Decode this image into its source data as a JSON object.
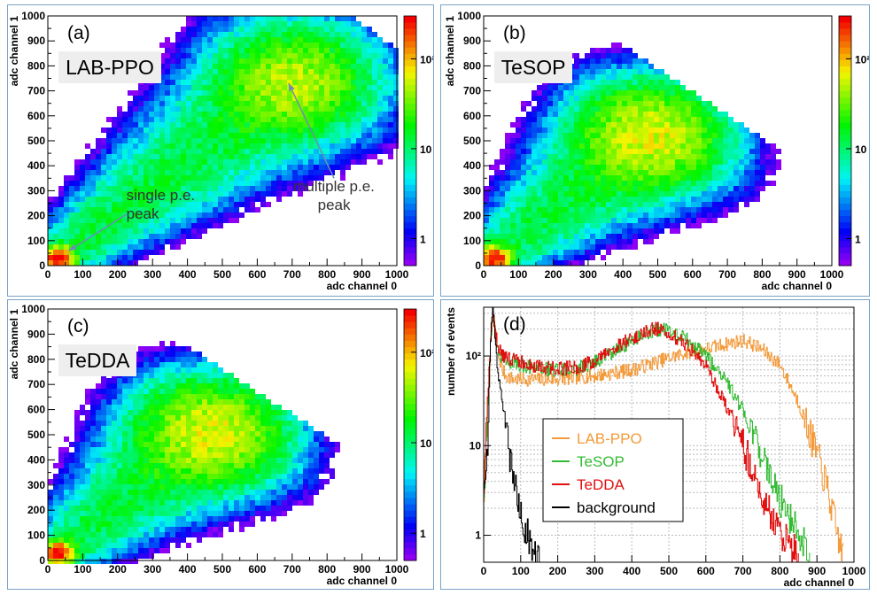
{
  "chart_data": [
    {
      "type": "heatmap",
      "panel": "a",
      "letter": "(a)",
      "label": "LAB-PPO",
      "xlabel": "adc channel 0",
      "ylabel": "adc channel 1",
      "xlim": [
        0,
        1000
      ],
      "ylim": [
        0,
        1000
      ],
      "x_ticks": [
        "0",
        "100",
        "200",
        "300",
        "400",
        "500",
        "600",
        "700",
        "800",
        "900",
        "1000"
      ],
      "y_ticks": [
        "0",
        "100",
        "200",
        "300",
        "400",
        "500",
        "600",
        "700",
        "800",
        "900",
        "1000"
      ],
      "colorbar": {
        "scale": "log",
        "range": [
          0.5,
          300
        ],
        "ticks": [
          {
            "value": 1,
            "label": "1"
          },
          {
            "value": 10,
            "label": "10"
          },
          {
            "value": 100,
            "label": "10²"
          }
        ]
      },
      "single_pe_peak": {
        "x": 30,
        "y": 30,
        "count": 300
      },
      "multi_pe_peak": {
        "x": 700,
        "y": 730,
        "count": 60
      },
      "annotations": [
        {
          "text_lines": [
            "single p.e.",
            "peak"
          ],
          "points_to": [
            60,
            60
          ]
        },
        {
          "text_lines": [
            "multiple p.e.",
            "peak"
          ],
          "points_to": [
            690,
            730
          ]
        }
      ]
    },
    {
      "type": "heatmap",
      "panel": "b",
      "letter": "(b)",
      "label": "TeSOP",
      "xlabel": "adc channel 0",
      "ylabel": "adc channel 1",
      "xlim": [
        0,
        1000
      ],
      "ylim": [
        0,
        1000
      ],
      "x_ticks": [
        "0",
        "100",
        "200",
        "300",
        "400",
        "500",
        "600",
        "700",
        "800",
        "900",
        "1000"
      ],
      "y_ticks": [
        "0",
        "100",
        "200",
        "300",
        "400",
        "500",
        "600",
        "700",
        "800",
        "900",
        "1000"
      ],
      "colorbar": {
        "scale": "log",
        "range": [
          0.5,
          300
        ],
        "ticks": [
          {
            "value": 1,
            "label": "1"
          },
          {
            "value": 10,
            "label": "10"
          },
          {
            "value": 100,
            "label": "10²"
          }
        ]
      },
      "single_pe_peak": {
        "x": 30,
        "y": 30,
        "count": 300
      },
      "multi_pe_peak": {
        "x": 480,
        "y": 520,
        "count": 80
      }
    },
    {
      "type": "heatmap",
      "panel": "c",
      "letter": "(c)",
      "label": "TeDDA",
      "xlabel": "adc channel 0",
      "ylabel": "adc channel 1",
      "xlim": [
        0,
        1000
      ],
      "ylim": [
        0,
        1000
      ],
      "x_ticks": [
        "0",
        "100",
        "200",
        "300",
        "400",
        "500",
        "600",
        "700",
        "800",
        "900",
        "1000"
      ],
      "y_ticks": [
        "0",
        "100",
        "200",
        "300",
        "400",
        "500",
        "600",
        "700",
        "800",
        "900",
        "1000"
      ],
      "colorbar": {
        "scale": "log",
        "range": [
          0.5,
          300
        ],
        "ticks": [
          {
            "value": 1,
            "label": "1"
          },
          {
            "value": 10,
            "label": "10"
          },
          {
            "value": 100,
            "label": "10²"
          }
        ]
      },
      "single_pe_peak": {
        "x": 30,
        "y": 30,
        "count": 300
      },
      "multi_pe_peak": {
        "x": 470,
        "y": 510,
        "count": 80
      }
    },
    {
      "type": "line",
      "panel": "d",
      "letter": "(d)",
      "xlabel": "adc channel 0",
      "ylabel": "number of events",
      "xlim": [
        0,
        1000
      ],
      "ylim": [
        0.5,
        350
      ],
      "yscale": "log",
      "x_ticks": [
        "0",
        "100",
        "200",
        "300",
        "400",
        "500",
        "600",
        "700",
        "800",
        "900",
        "1000"
      ],
      "y_ticks": [
        {
          "value": 1,
          "label": "1"
        },
        {
          "value": 10,
          "label": "10"
        },
        {
          "value": 100,
          "label": "10²"
        }
      ],
      "grid": true,
      "legend": {
        "position": "left-middle"
      },
      "series": [
        {
          "name": "LAB-PPO",
          "color": "#f39a3a",
          "x": [
            0,
            10,
            20,
            25,
            30,
            40,
            50,
            60,
            80,
            100,
            150,
            200,
            300,
            400,
            500,
            550,
            600,
            650,
            700,
            750,
            800,
            850,
            900,
            930,
            950,
            970
          ],
          "y": [
            3,
            30,
            200,
            300,
            200,
            100,
            70,
            60,
            55,
            55,
            55,
            55,
            60,
            70,
            95,
            110,
            120,
            135,
            150,
            120,
            80,
            30,
            8,
            3,
            1.2,
            0.6
          ]
        },
        {
          "name": "TeSOP",
          "color": "#33bb33",
          "x": [
            0,
            10,
            20,
            25,
            30,
            40,
            50,
            60,
            80,
            100,
            150,
            200,
            250,
            300,
            350,
            400,
            450,
            480,
            500,
            550,
            600,
            650,
            700,
            750,
            800,
            850,
            880
          ],
          "y": [
            3,
            30,
            200,
            300,
            180,
            110,
            95,
            90,
            85,
            80,
            72,
            70,
            72,
            85,
            110,
            150,
            190,
            200,
            190,
            150,
            100,
            55,
            25,
            8,
            2.5,
            1,
            0.6
          ]
        },
        {
          "name": "TeDDA",
          "color": "#e01010",
          "x": [
            0,
            10,
            20,
            25,
            30,
            40,
            50,
            60,
            80,
            100,
            150,
            200,
            250,
            300,
            350,
            400,
            450,
            470,
            500,
            550,
            600,
            650,
            700,
            750,
            800,
            850
          ],
          "y": [
            3,
            30,
            210,
            310,
            190,
            120,
            100,
            95,
            90,
            85,
            75,
            72,
            75,
            90,
            120,
            160,
            195,
            200,
            180,
            130,
            75,
            30,
            10,
            3,
            1,
            0.6
          ]
        },
        {
          "name": "background",
          "color": "#000000",
          "x": [
            0,
            10,
            15,
            20,
            25,
            30,
            40,
            50,
            60,
            70,
            80,
            90,
            100,
            110,
            120,
            130,
            140,
            150
          ],
          "y": [
            3,
            8,
            60,
            250,
            320,
            150,
            60,
            30,
            15,
            8,
            4,
            2.5,
            1.6,
            1.2,
            1,
            0.8,
            0.7,
            0.6
          ]
        }
      ]
    }
  ]
}
